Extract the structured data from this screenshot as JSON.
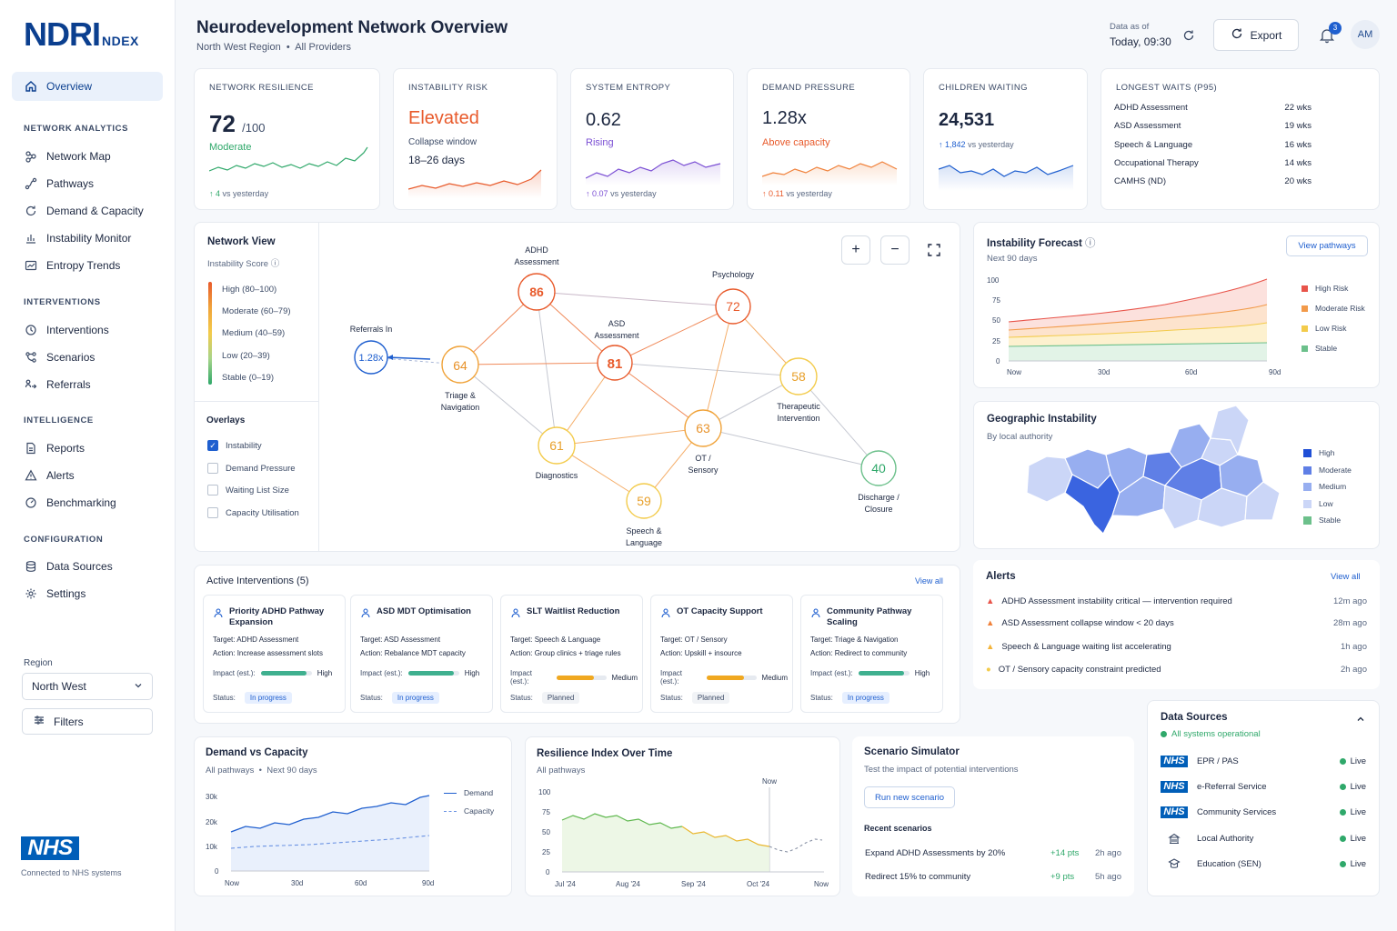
{
  "brand": {
    "logo_main": "NDRI",
    "logo_sub": "NDEX"
  },
  "header": {
    "title": "Neurodevelopment Network Overview",
    "region": "North West Region",
    "providers": "All Providers",
    "data_as_of_label": "Data as of",
    "data_as_of_value": "Today, 09:30",
    "export_label": "Export",
    "notification_count": "3",
    "avatar_initials": "AM"
  },
  "sidebar": {
    "overview": "Overview",
    "sections": {
      "network_analytics": "NETWORK ANALYTICS",
      "interventions": "INTERVENTIONS",
      "intelligence": "INTELLIGENCE",
      "configuration": "CONFIGURATION"
    },
    "network_analytics": [
      "Network Map",
      "Pathways",
      "Demand & Capacity",
      "Instability Monitor",
      "Entropy Trends"
    ],
    "interventions": [
      "Interventions",
      "Scenarios",
      "Referrals"
    ],
    "intelligence": [
      "Reports",
      "Alerts",
      "Benchmarking"
    ],
    "configuration": [
      "Data Sources",
      "Settings"
    ],
    "region_label": "Region",
    "region_value": "North West",
    "filters_label": "Filters",
    "nhs_logo": "NHS",
    "nhs_caption": "Connected to NHS systems"
  },
  "kpis": {
    "resilience": {
      "label": "NETWORK RESILIENCE",
      "value": "72",
      "unit": "/100",
      "status": "Moderate",
      "delta": "4",
      "delta_text": "vs yesterday",
      "color": "#2fa86a"
    },
    "instability": {
      "label": "INSTABILITY RISK",
      "value": "Elevated",
      "window_label": "Collapse window",
      "window_value": "18–26 days",
      "color": "#e85a2b"
    },
    "entropy": {
      "label": "SYSTEM ENTROPY",
      "value": "0.62",
      "status": "Rising",
      "delta": "0.07",
      "delta_text": "vs yesterday",
      "color": "#7b4fd4"
    },
    "demand": {
      "label": "DEMAND PRESSURE",
      "value": "1.28x",
      "status": "Above capacity",
      "delta": "0.11",
      "delta_text": "vs yesterday",
      "color": "#e85a2b"
    },
    "waiting": {
      "label": "CHILDREN WAITING",
      "value": "24,531",
      "delta": "1,842",
      "delta_text": "vs yesterday",
      "color": "#1f5fcf"
    },
    "waits": {
      "label": "LONGEST WAITS (P95)",
      "rows": [
        {
          "name": "ADHD Assessment",
          "value": "22 wks"
        },
        {
          "name": "ASD Assessment",
          "value": "19 wks"
        },
        {
          "name": "Speech & Language",
          "value": "16 wks"
        },
        {
          "name": "Occupational Therapy",
          "value": "14 wks"
        },
        {
          "name": "CAMHS (ND)",
          "value": "20 wks"
        }
      ]
    }
  },
  "network": {
    "title": "Network View",
    "score_label": "Instability Score",
    "legend": [
      {
        "label": "High (80–100)",
        "color": "#e85a2b"
      },
      {
        "label": "Moderate (60–79)",
        "color": "#f0a33a"
      },
      {
        "label": "Medium (40–59)",
        "color": "#f3cb4b"
      },
      {
        "label": "Low (20–39)",
        "color": "#a6d48a"
      },
      {
        "label": "Stable (0–19)",
        "color": "#2fa86a"
      }
    ],
    "overlays_title": "Overlays",
    "overlays": [
      {
        "label": "Instability",
        "checked": true
      },
      {
        "label": "Demand Pressure",
        "checked": false
      },
      {
        "label": "Waiting List Size",
        "checked": false
      },
      {
        "label": "Capacity Utilisation",
        "checked": false
      }
    ],
    "zoom_in": "+",
    "zoom_out": "−",
    "nodes": [
      {
        "id": "adhd",
        "value": "86",
        "label": "ADHD\nAssessment"
      },
      {
        "id": "psych",
        "value": "72",
        "label": "Psychology"
      },
      {
        "id": "asd",
        "value": "81",
        "label": "ASD\nAssessment"
      },
      {
        "id": "triage",
        "value": "64",
        "label": "Triage &\nNavigation"
      },
      {
        "id": "ther",
        "value": "58",
        "label": "Therapeutic\nIntervention"
      },
      {
        "id": "ot",
        "value": "63",
        "label": "OT /\nSensory"
      },
      {
        "id": "diag",
        "value": "61",
        "label": "Diagnostics"
      },
      {
        "id": "slt",
        "value": "59",
        "label": "Speech &\nLanguage"
      },
      {
        "id": "dis",
        "value": "40",
        "label": "Discharge /\nClosure"
      },
      {
        "id": "ref",
        "value": "1.28x",
        "label": "Referrals In"
      }
    ]
  },
  "forecast": {
    "title": "Instability Forecast",
    "sub": "Next 90 days",
    "button": "View pathways",
    "yticks": [
      "100",
      "75",
      "50",
      "25",
      "0"
    ],
    "xticks": [
      "Now",
      "30d",
      "60d",
      "90d"
    ],
    "legend": [
      {
        "label": "High Risk",
        "color": "#e8544a"
      },
      {
        "label": "Moderate Risk",
        "color": "#f29a4a"
      },
      {
        "label": "Low Risk",
        "color": "#f3cb4b"
      },
      {
        "label": "Stable",
        "color": "#6cc08b"
      }
    ]
  },
  "geo": {
    "title": "Geographic Instability",
    "sub": "By local authority",
    "legend": [
      {
        "label": "High",
        "color": "#1f4fd6"
      },
      {
        "label": "Moderate",
        "color": "#5f7fe6"
      },
      {
        "label": "Medium",
        "color": "#97aef0"
      },
      {
        "label": "Low",
        "color": "#cbd6f7"
      },
      {
        "label": "Stable",
        "color": "#6cc08b"
      }
    ]
  },
  "interventions": {
    "title": "Active Interventions (5)",
    "view_all": "View all",
    "target_prefix": "Target:",
    "action_prefix": "Action:",
    "impact_label": "Impact (est.):",
    "status_label": "Status:",
    "items": [
      {
        "title": "Priority ADHD Pathway Expansion",
        "target": "ADHD Assessment",
        "action": "Increase assessment slots",
        "impact": "High",
        "impact_level": 0.9,
        "impact_color": "#3fb08f",
        "status": "In progress"
      },
      {
        "title": "ASD MDT Optimisation",
        "target": "ASD Assessment",
        "action": "Rebalance MDT capacity",
        "impact": "High",
        "impact_level": 0.9,
        "impact_color": "#3fb08f",
        "status": "In progress"
      },
      {
        "title": "SLT Waitlist Reduction",
        "target": "Speech & Language",
        "action": "Group clinics + triage rules",
        "impact": "Medium",
        "impact_level": 0.75,
        "impact_color": "#f0a820",
        "status": "Planned"
      },
      {
        "title": "OT Capacity Support",
        "target": "OT / Sensory",
        "action": "Upskill + insource",
        "impact": "Medium",
        "impact_level": 0.75,
        "impact_color": "#f0a820",
        "status": "Planned"
      },
      {
        "title": "Community Pathway Scaling",
        "target": "Triage & Navigation",
        "action": "Redirect to community",
        "impact": "High",
        "impact_level": 0.9,
        "impact_color": "#3fb08f",
        "status": "In progress"
      }
    ]
  },
  "alerts": {
    "title": "Alerts",
    "view_all": "View all",
    "items": [
      {
        "text": "ADHD Assessment instability critical — intervention required",
        "time": "12m ago",
        "color": "#e8544a"
      },
      {
        "text": "ASD Assessment collapse window < 20 days",
        "time": "28m ago",
        "color": "#f0813a"
      },
      {
        "text": "Speech & Language waiting list accelerating",
        "time": "1h ago",
        "color": "#f3b43b"
      },
      {
        "text": "OT / Sensory capacity constraint predicted",
        "time": "2h ago",
        "color": "#f3cb4b"
      }
    ]
  },
  "data_sources": {
    "title": "Data Sources",
    "status": "All systems operational",
    "items": [
      {
        "name": "EPR / PAS",
        "status": "Live",
        "icon": "nhs"
      },
      {
        "name": "e-Referral Service",
        "status": "Live",
        "icon": "nhs"
      },
      {
        "name": "Community Services",
        "status": "Live",
        "icon": "nhs"
      },
      {
        "name": "Local Authority",
        "status": "Live",
        "icon": "building-icon"
      },
      {
        "name": "Education (SEN)",
        "status": "Live",
        "icon": "school-icon"
      }
    ],
    "nhs_badge": "NHS"
  },
  "demand_capacity": {
    "title": "Demand vs Capacity",
    "sub": "All pathways",
    "sub2": "Next 90 days",
    "legend": [
      "Demand",
      "Capacity"
    ],
    "yticks": [
      "30k",
      "20k",
      "10k",
      "0"
    ],
    "xticks": [
      "Now",
      "30d",
      "60d",
      "90d"
    ]
  },
  "resilience_chart": {
    "title": "Resilience Index Over Time",
    "sub": "All pathways",
    "now_label": "Now",
    "yticks": [
      "100",
      "75",
      "50",
      "25",
      "0"
    ],
    "xticks": [
      "Jul '24",
      "Aug '24",
      "Sep '24",
      "Oct '24",
      "Now"
    ]
  },
  "scenario": {
    "title": "Scenario Simulator",
    "sub": "Test the impact of potential interventions",
    "button": "Run new scenario",
    "recent_title": "Recent scenarios",
    "items": [
      {
        "name": "Expand ADHD Assessments by 20%",
        "points": "+14 pts",
        "time": "2h ago"
      },
      {
        "name": "Redirect 15% to community",
        "points": "+9 pts",
        "time": "5h ago"
      }
    ]
  }
}
